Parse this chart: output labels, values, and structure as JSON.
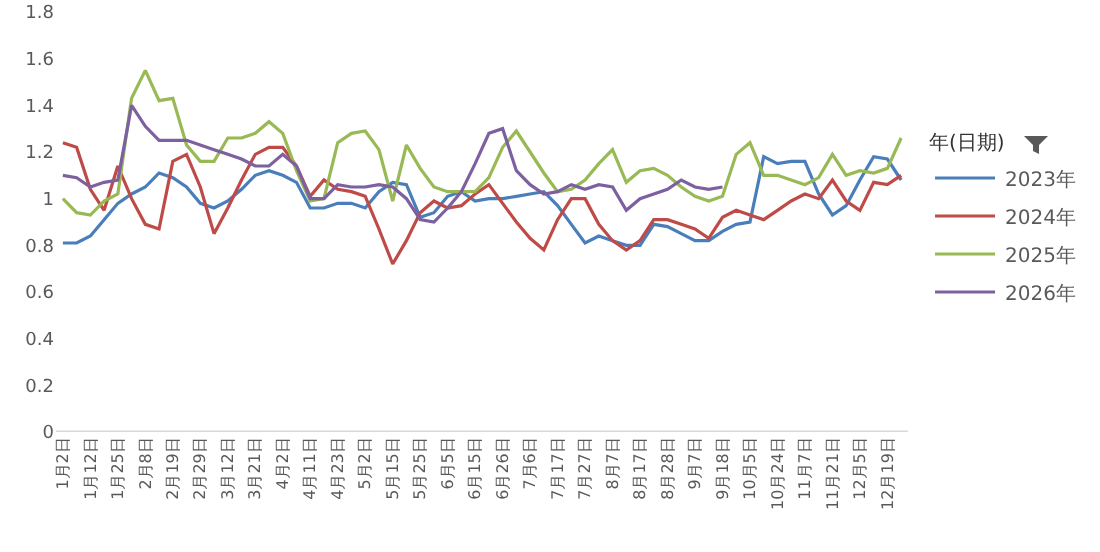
{
  "chart_data": {
    "type": "line",
    "legend_title": "年(日期)",
    "legend": "right",
    "grid": false,
    "marker": "none",
    "line_style": "solid",
    "categories": [
      "1月2日",
      null,
      "1月12日",
      null,
      "1月25日",
      null,
      "2月8日",
      null,
      "2月19日",
      null,
      "2月29日",
      null,
      "3月12日",
      null,
      "3月21日",
      null,
      "4月2日",
      null,
      "4月11日",
      null,
      "4月23日",
      null,
      "5月2日",
      null,
      "5月15日",
      null,
      "5月25日",
      null,
      "6月5日",
      null,
      "6月15日",
      null,
      "6月26日",
      null,
      "7月6日",
      null,
      "7月17日",
      null,
      "7月27日",
      null,
      "8月7日",
      null,
      "8月17日",
      null,
      "8月28日",
      null,
      "9月7日",
      null,
      "9月18日",
      null,
      "10月5日",
      null,
      "10月24日",
      null,
      "11月7日",
      null,
      "11月21日",
      null,
      "12月5日",
      null,
      "12月19日",
      null
    ],
    "ylim": [
      0,
      1.8
    ],
    "yticks": [
      0,
      0.2,
      0.4,
      0.6,
      0.8,
      1,
      1.2,
      1.4,
      1.6,
      1.8
    ],
    "series": [
      {
        "name": "2023年",
        "color": "#4a7ebb",
        "values": [
          0.81,
          0.81,
          0.84,
          0.91,
          0.98,
          1.02,
          1.05,
          1.11,
          1.09,
          1.05,
          0.98,
          0.96,
          0.99,
          1.04,
          1.1,
          1.12,
          1.1,
          1.07,
          0.96,
          0.96,
          0.98,
          0.98,
          0.96,
          1.03,
          1.07,
          1.06,
          0.92,
          0.94,
          1.01,
          1.03,
          0.99,
          1,
          1,
          1.01,
          1.02,
          1.03,
          0.97,
          0.89,
          0.81,
          0.84,
          0.82,
          0.8,
          0.8,
          0.89,
          0.88,
          0.85,
          0.82,
          0.82,
          0.86,
          0.89,
          0.9,
          1.18,
          1.15,
          1.16,
          1.16,
          1.02,
          0.93,
          0.97,
          1.08,
          1.18,
          1.17,
          1.08
        ]
      },
      {
        "name": "2024年",
        "color": "#be4b48",
        "values": [
          1.24,
          1.22,
          1.04,
          0.95,
          1.14,
          1,
          0.89,
          0.87,
          1.16,
          1.19,
          1.05,
          0.85,
          0.96,
          1.08,
          1.19,
          1.22,
          1.22,
          1.14,
          1.01,
          1.08,
          1.04,
          1.03,
          1.01,
          0.87,
          0.72,
          0.82,
          0.94,
          0.99,
          0.96,
          0.97,
          1.02,
          1.06,
          0.98,
          0.9,
          0.83,
          0.78,
          0.91,
          1,
          1,
          0.89,
          0.82,
          0.78,
          0.82,
          0.91,
          0.91,
          0.89,
          0.87,
          0.83,
          0.92,
          0.95,
          0.93,
          0.91,
          0.95,
          0.99,
          1.02,
          1,
          1.08,
          0.99,
          0.95,
          1.07,
          1.06,
          1.1
        ]
      },
      {
        "name": "2025年",
        "color": "#98b954",
        "values": [
          1,
          0.94,
          0.93,
          0.99,
          1.02,
          1.43,
          1.55,
          1.42,
          1.43,
          1.23,
          1.16,
          1.16,
          1.26,
          1.26,
          1.28,
          1.33,
          1.28,
          1.12,
          0.99,
          1,
          1.24,
          1.28,
          1.29,
          1.21,
          0.99,
          1.23,
          1.13,
          1.05,
          1.03,
          1.03,
          1.03,
          1.09,
          1.22,
          1.29,
          1.2,
          1.11,
          1.03,
          1.04,
          1.08,
          1.15,
          1.21,
          1.07,
          1.12,
          1.13,
          1.1,
          1.05,
          1.01,
          0.99,
          1.01,
          1.19,
          1.24,
          1.1,
          1.1,
          1.08,
          1.06,
          1.09,
          1.19,
          1.1,
          1.12,
          1.11,
          1.13,
          1.26
        ]
      },
      {
        "name": "2026年",
        "color": "#7d60a0",
        "values": [
          1.1,
          1.09,
          1.05,
          1.07,
          1.08,
          1.4,
          1.31,
          1.25,
          1.25,
          1.25,
          1.23,
          1.21,
          1.19,
          1.17,
          1.14,
          1.14,
          1.19,
          1.14,
          1,
          1,
          1.06,
          1.05,
          1.05,
          1.06,
          1.05,
          1,
          0.91,
          0.9,
          0.96,
          1.03,
          1.15,
          1.28,
          1.3,
          1.12,
          1.06,
          1.02,
          1.03,
          1.06,
          1.04,
          1.06,
          1.05,
          0.95,
          1,
          1.02,
          1.04,
          1.08,
          1.05,
          1.04,
          1.05,
          null,
          null,
          null,
          null,
          null,
          null,
          null,
          null,
          null,
          null,
          null,
          null,
          null
        ]
      }
    ]
  }
}
